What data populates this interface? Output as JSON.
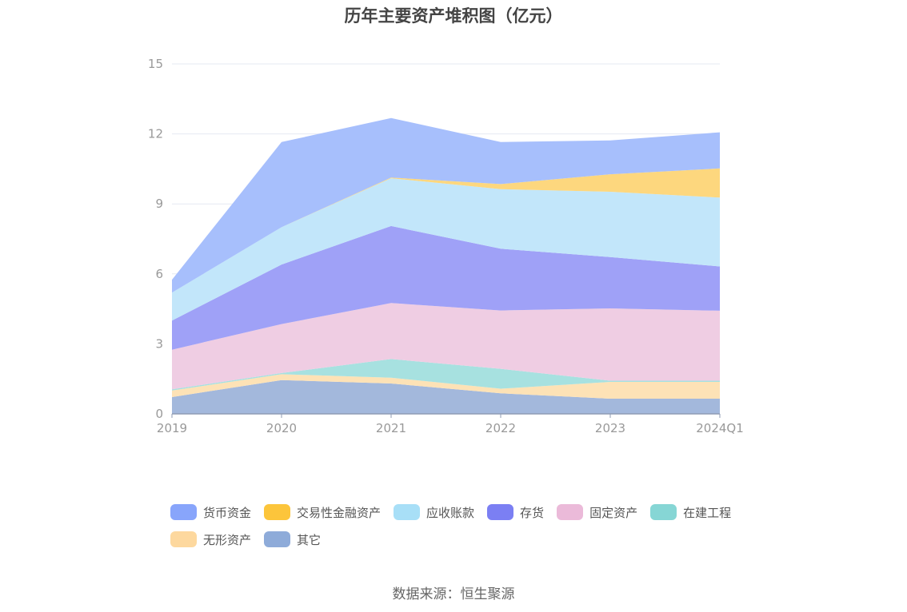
{
  "chart_data": {
    "type": "area",
    "title": "历年主要资产堆积图（亿元）",
    "categories": [
      "2019",
      "2020",
      "2021",
      "2022",
      "2023",
      "2024Q1"
    ],
    "ylim": [
      0,
      15
    ],
    "yticks": [
      "0",
      "3",
      "6",
      "9",
      "12",
      "15"
    ],
    "grid": true,
    "legend_position": "bottom",
    "stacked": true,
    "series": [
      {
        "name": "其它",
        "color": "#a3b8dc",
        "values": [
          0.72,
          1.45,
          1.3,
          0.88,
          0.65,
          0.65
        ]
      },
      {
        "name": "无形资产",
        "color": "#fde2b6",
        "values": [
          0.28,
          0.25,
          0.25,
          0.2,
          0.72,
          0.72
        ]
      },
      {
        "name": "在建工程",
        "color": "#a7e1e0",
        "values": [
          0.05,
          0.05,
          0.8,
          0.85,
          0.05,
          0.05
        ]
      },
      {
        "name": "固定资产",
        "color": "#efcde3",
        "values": [
          1.7,
          2.1,
          2.4,
          2.5,
          3.1,
          3.0
        ]
      },
      {
        "name": "存货",
        "color": "#9fa1f7",
        "values": [
          1.25,
          2.55,
          3.3,
          2.65,
          2.2,
          1.9
        ]
      },
      {
        "name": "应收账款",
        "color": "#c2e6fa",
        "values": [
          1.2,
          1.6,
          2.05,
          2.55,
          2.8,
          2.95
        ]
      },
      {
        "name": "交易性金融资产",
        "color": "#fdd77e",
        "values": [
          0,
          0,
          0.03,
          0.22,
          0.75,
          1.25
        ]
      },
      {
        "name": "货币资金",
        "color": "#a7bffc",
        "values": [
          0.55,
          3.65,
          2.55,
          1.8,
          1.45,
          1.55
        ]
      }
    ]
  },
  "legend": [
    {
      "name": "货币资金",
      "color": "#88a5fb"
    },
    {
      "name": "交易性金融资产",
      "color": "#fcc53b"
    },
    {
      "name": "应收账款",
      "color": "#a8dff7"
    },
    {
      "name": "存货",
      "color": "#7b7ff3"
    },
    {
      "name": "固定资产",
      "color": "#ebbad9"
    },
    {
      "name": "在建工程",
      "color": "#86d6d5"
    },
    {
      "name": "无形资产",
      "color": "#fdd89e"
    },
    {
      "name": "其它",
      "color": "#8eabd9"
    }
  ],
  "source": "数据来源：恒生聚源"
}
